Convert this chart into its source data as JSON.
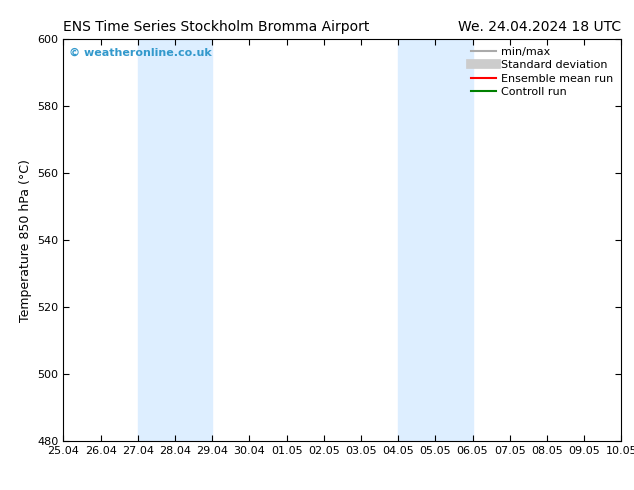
{
  "title_left": "ENS Time Series Stockholm Bromma Airport",
  "title_right": "We. 24.04.2024 18 UTC",
  "ylabel": "Temperature 850 hPa (°C)",
  "ylim": [
    480,
    600
  ],
  "yticks": [
    480,
    500,
    520,
    540,
    560,
    580,
    600
  ],
  "x_labels": [
    "25.04",
    "26.04",
    "27.04",
    "28.04",
    "29.04",
    "30.04",
    "01.05",
    "02.05",
    "03.05",
    "04.05",
    "05.05",
    "06.05",
    "07.05",
    "08.05",
    "09.05",
    "10.05"
  ],
  "x_values": [
    0,
    1,
    2,
    3,
    4,
    5,
    6,
    7,
    8,
    9,
    10,
    11,
    12,
    13,
    14,
    15
  ],
  "shaded_bands": [
    {
      "xmin": 2,
      "xmax": 4,
      "color": "#ddeeff"
    },
    {
      "xmin": 9,
      "xmax": 11,
      "color": "#ddeeff"
    }
  ],
  "watermark_text": "© weatheronline.co.uk",
  "watermark_color": "#3399cc",
  "legend_entries": [
    {
      "label": "min/max",
      "color": "#aaaaaa",
      "lw": 1.5,
      "style": "solid"
    },
    {
      "label": "Standard deviation",
      "color": "#cccccc",
      "lw": 7,
      "style": "solid"
    },
    {
      "label": "Ensemble mean run",
      "color": "#ff0000",
      "lw": 1.5,
      "style": "solid"
    },
    {
      "label": "Controll run",
      "color": "#008000",
      "lw": 1.5,
      "style": "solid"
    }
  ],
  "bg_color": "#ffffff",
  "title_fontsize": 10,
  "axis_label_fontsize": 9,
  "tick_fontsize": 8,
  "legend_fontsize": 8
}
